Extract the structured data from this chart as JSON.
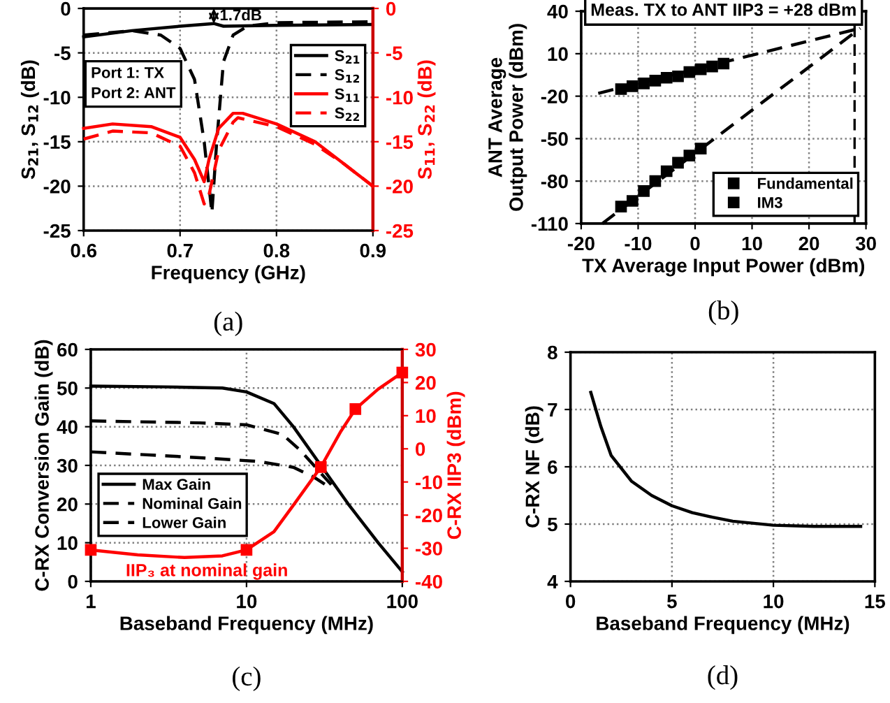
{
  "chart_data": [
    {
      "type": "line",
      "xlabel": "Frequency (GHz)",
      "ylabel": "S$_{21}$, S$_{12}$ (dB)",
      "y2label": "S$_{11}$, S$_{22}$ (dB)",
      "xlim": [
        0.6,
        0.9
      ],
      "xticks": [
        0.6,
        0.7,
        0.8,
        0.9
      ],
      "ylim": [
        -25,
        0
      ],
      "yticks": [
        -25,
        -20,
        -15,
        -10,
        -5,
        0
      ],
      "y2lim": [
        -25,
        0
      ],
      "y2ticks": [
        -25,
        -20,
        -15,
        -10,
        -5,
        0
      ],
      "grid": true,
      "legend": "top right",
      "annotations": [
        {
          "text": "1.7dB",
          "x": 0.735,
          "y": -1.7
        },
        "Port 1: TX\nPort 2: ANT",
        "(a)"
      ],
      "series": [
        {
          "name": "S$_{21}$",
          "color": "#000000",
          "line_style": "solid",
          "x": [
            0.6,
            0.65,
            0.7,
            0.735,
            0.745,
            0.8,
            0.9
          ],
          "values": [
            -3.2,
            -2.5,
            -2.0,
            -1.7,
            -2.0,
            -1.9,
            -1.8
          ]
        },
        {
          "name": "S$_{12}$",
          "color": "#000000",
          "line_style": "dashed",
          "x": [
            0.6,
            0.65,
            0.68,
            0.7,
            0.715,
            0.725,
            0.733,
            0.738,
            0.745,
            0.755,
            0.77,
            0.8,
            0.9
          ],
          "values": [
            -3.0,
            -2.5,
            -3.0,
            -4.5,
            -8.0,
            -15.0,
            -23.0,
            -15.0,
            -6.0,
            -3.0,
            -2.0,
            -1.6,
            -1.5
          ]
        },
        {
          "name": "S$_{11}$",
          "color": "#ff0000",
          "line_style": "solid",
          "axis": "y2",
          "x": [
            0.6,
            0.63,
            0.67,
            0.7,
            0.715,
            0.725,
            0.73,
            0.74,
            0.755,
            0.765,
            0.8,
            0.84,
            0.87,
            0.9
          ],
          "values": [
            -13.5,
            -13.0,
            -13.3,
            -14.5,
            -17.0,
            -19.5,
            -17.0,
            -13.5,
            -11.8,
            -11.8,
            -13.0,
            -15.0,
            -17.5,
            -20.0
          ]
        },
        {
          "name": "S$_{22}$",
          "color": "#ff0000",
          "line_style": "dashed",
          "axis": "y2",
          "x": [
            0.6,
            0.63,
            0.67,
            0.7,
            0.715,
            0.725,
            0.73,
            0.74,
            0.755,
            0.76,
            0.8,
            0.84,
            0.87,
            0.9
          ],
          "values": [
            -14.7,
            -13.8,
            -14.0,
            -15.5,
            -18.5,
            -22.0,
            -21.0,
            -16.0,
            -12.8,
            -12.3,
            -13.3,
            -15.3,
            -17.5,
            -20.0
          ]
        }
      ]
    },
    {
      "type": "scatter",
      "title": "Meas. TX to ANT IIP3 = +28 dBm",
      "xlabel": "TX Average Input Power (dBm)",
      "ylabel": "ANT Average\nOutput Power (dBm)",
      "xlim": [
        -20,
        30
      ],
      "xticks": [
        -20,
        -10,
        0,
        10,
        20,
        30
      ],
      "ylim": [
        -110,
        40
      ],
      "yticks": [
        -110,
        -80,
        -50,
        -20,
        10,
        40
      ],
      "grid": true,
      "legend": "bottom right",
      "annotations": [
        "(b)"
      ],
      "ref_lines": [
        {
          "axis": "x",
          "value": 28,
          "line_style": "dashed",
          "color": "#000000"
        }
      ],
      "series": [
        {
          "name": "Fundamental",
          "color": "#000000",
          "marker": "square",
          "x": [
            -13,
            -11,
            -9,
            -7,
            -5,
            -3,
            -1,
            1,
            3,
            5
          ],
          "values": [
            -15,
            -13,
            -11,
            -9,
            -7,
            -6,
            -3,
            -1,
            1,
            3
          ]
        },
        {
          "name": "IM3",
          "color": "#000000",
          "marker": "square",
          "x": [
            -13,
            -11,
            -9,
            -7,
            -5,
            -3,
            -1,
            1
          ],
          "values": [
            -98,
            -94,
            -87,
            -80,
            -73,
            -67,
            -62,
            -57
          ]
        },
        {
          "type": "line",
          "color": "#000000",
          "line_style": "dashed",
          "x": [
            -17,
            29
          ],
          "values": [
            -18,
            28
          ]
        },
        {
          "type": "line",
          "color": "#000000",
          "line_style": "dashed",
          "x": [
            -16.3,
            29
          ],
          "values": [
            -110,
            28
          ]
        }
      ]
    },
    {
      "type": "line",
      "xlabel": "Baseband Frequency (MHz)",
      "ylabel": "C-RX Conversion Gain (dB)",
      "y2label": "C-RX IIP3 (dBm)",
      "log": "x",
      "xlim": [
        1,
        100
      ],
      "xticks": [
        1,
        10,
        100
      ],
      "ylim": [
        0,
        60
      ],
      "yticks": [
        0,
        10,
        20,
        30,
        40,
        50,
        60
      ],
      "y2lim": [
        -40,
        30
      ],
      "y2ticks": [
        -40,
        -30,
        -20,
        -10,
        0,
        10,
        20,
        30
      ],
      "grid": true,
      "legend": "left",
      "annotations": [
        "(c)"
      ],
      "series": [
        {
          "name": "Max Gain",
          "color": "#000000",
          "line_style": "solid",
          "x": [
            1,
            3,
            7,
            10,
            15,
            20,
            30,
            45,
            70,
            100
          ],
          "values": [
            50.5,
            50.3,
            50,
            49,
            46,
            40,
            30,
            20,
            10,
            2.5
          ]
        },
        {
          "name": "Nominal Gain",
          "color": "#000000",
          "line_style": "dashed",
          "x": [
            1,
            5,
            10,
            17,
            22,
            30,
            35
          ],
          "values": [
            41.5,
            41,
            40.5,
            38,
            34,
            28,
            25
          ]
        },
        {
          "name": "Lower Gain",
          "color": "#000000",
          "line_style": "dashed",
          "x": [
            1,
            5,
            12,
            20,
            27,
            35
          ],
          "values": [
            33.5,
            32,
            31,
            29.5,
            27,
            24
          ]
        },
        {
          "color": "#ff0000",
          "line_style": "solid",
          "axis": "y2",
          "x": [
            1,
            2,
            4,
            7,
            10,
            15,
            20,
            30,
            40,
            50,
            70,
            100
          ],
          "values": [
            -30.5,
            -32,
            -32.8,
            -32.3,
            -30.5,
            -25,
            -17,
            -5.5,
            5,
            12,
            18,
            23
          ]
        },
        {
          "type": "scatter",
          "name": "IIP₃ at nominal gain",
          "color": "#ff0000",
          "marker": "square",
          "axis": "y2",
          "x": [
            1,
            10,
            30,
            50,
            100
          ],
          "values": [
            -30.5,
            -30.5,
            -5.5,
            12,
            23
          ]
        }
      ]
    },
    {
      "type": "line",
      "xlabel": "Baseband Frequency (MHz)",
      "ylabel": "C-RX NF (dB)",
      "xlim": [
        0,
        15
      ],
      "xticks": [
        0,
        5,
        10,
        15
      ],
      "ylim": [
        4,
        8
      ],
      "yticks": [
        4,
        5,
        6,
        7,
        8
      ],
      "grid": true,
      "annotations": [
        "(d)"
      ],
      "series": [
        {
          "color": "#000000",
          "line_style": "solid",
          "x": [
            1,
            1.5,
            2,
            3,
            4,
            5,
            6,
            7,
            8,
            10,
            12,
            14.3
          ],
          "values": [
            7.3,
            6.7,
            6.2,
            5.75,
            5.5,
            5.32,
            5.2,
            5.12,
            5.05,
            4.98,
            4.96,
            4.96
          ]
        }
      ]
    }
  ]
}
